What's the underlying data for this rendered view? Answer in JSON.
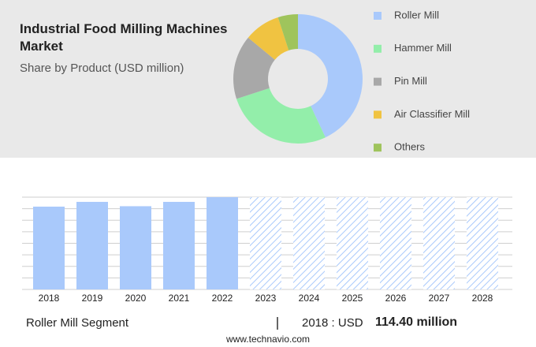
{
  "chart_data": [
    {
      "type": "pie",
      "title": "Industrial Food Milling Machines Market",
      "subtitle": "Share by Product (USD million)",
      "categories": [
        "Roller Mill",
        "Hammer Mill",
        "Pin Mill",
        "Air Classifier Mill",
        "Others"
      ],
      "values": [
        43,
        27,
        16,
        9,
        5
      ],
      "colors": [
        "#a9c9fb",
        "#93eeaa",
        "#a8a8a8",
        "#f0c341",
        "#9fc45c"
      ],
      "donut": true
    },
    {
      "type": "bar",
      "categories": [
        "2018",
        "2019",
        "2020",
        "2021",
        "2022",
        "2023",
        "2024",
        "2025",
        "2026",
        "2027",
        "2028"
      ],
      "values": [
        114.4,
        121,
        115,
        121,
        127.5,
        null,
        null,
        null,
        null,
        null,
        null
      ],
      "color": "#a9c9fb",
      "ylim": [
        0,
        127.5
      ],
      "grid": true
    }
  ],
  "footer": {
    "segment": "Roller Mill Segment",
    "year_text": "2018 : USD",
    "value_text": "114.40 million"
  },
  "source": "www.technavio.com"
}
